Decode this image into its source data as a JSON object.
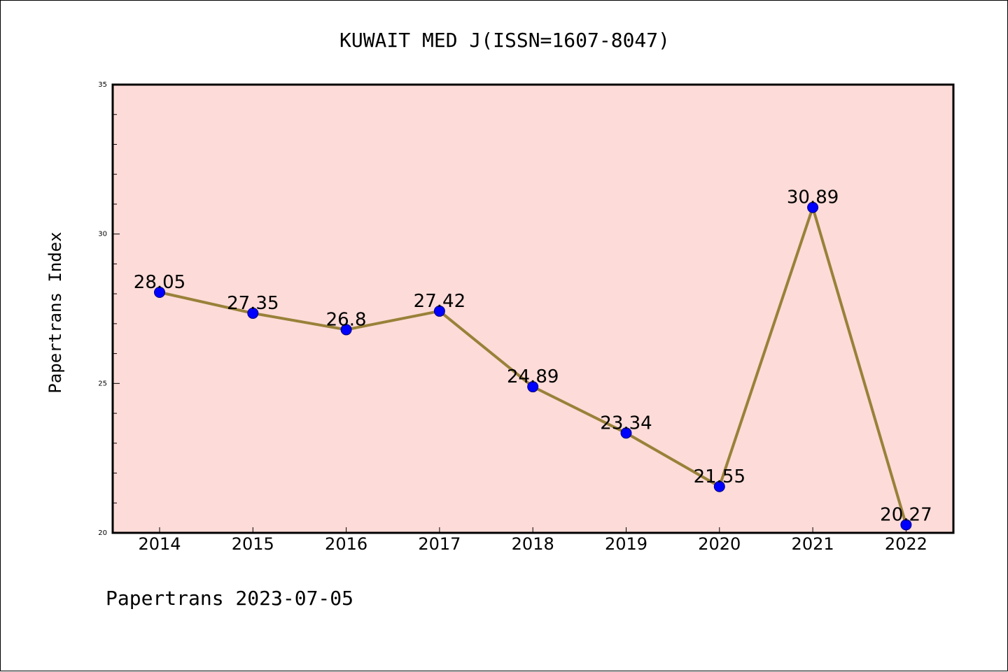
{
  "chart_data": {
    "type": "line",
    "title": "KUWAIT MED J(ISSN=1607-8047)",
    "ylabel": "Papertrans Index",
    "xlabel": "",
    "footer": "Papertrans 2023-07-05",
    "categories": [
      "2014",
      "2015",
      "2016",
      "2017",
      "2018",
      "2019",
      "2020",
      "2021",
      "2022"
    ],
    "series": [
      {
        "values": [
          28.05,
          27.35,
          26.8,
          27.42,
          24.89,
          23.34,
          21.55,
          30.89,
          20.27
        ],
        "labels": [
          "28.05",
          "27.35",
          "26.8",
          "27.42",
          "24.89",
          "23.34",
          "21.55",
          "30.89",
          "20.27"
        ]
      }
    ],
    "ylim": [
      20,
      35
    ],
    "yticks": [
      "20",
      "25",
      "30",
      "35"
    ],
    "grid": false,
    "colors": {
      "plot_background": "#fddbd8",
      "line": "#998139",
      "marker": "#0000ff",
      "marker_edge": "#00007a",
      "axis": "#000000"
    }
  }
}
